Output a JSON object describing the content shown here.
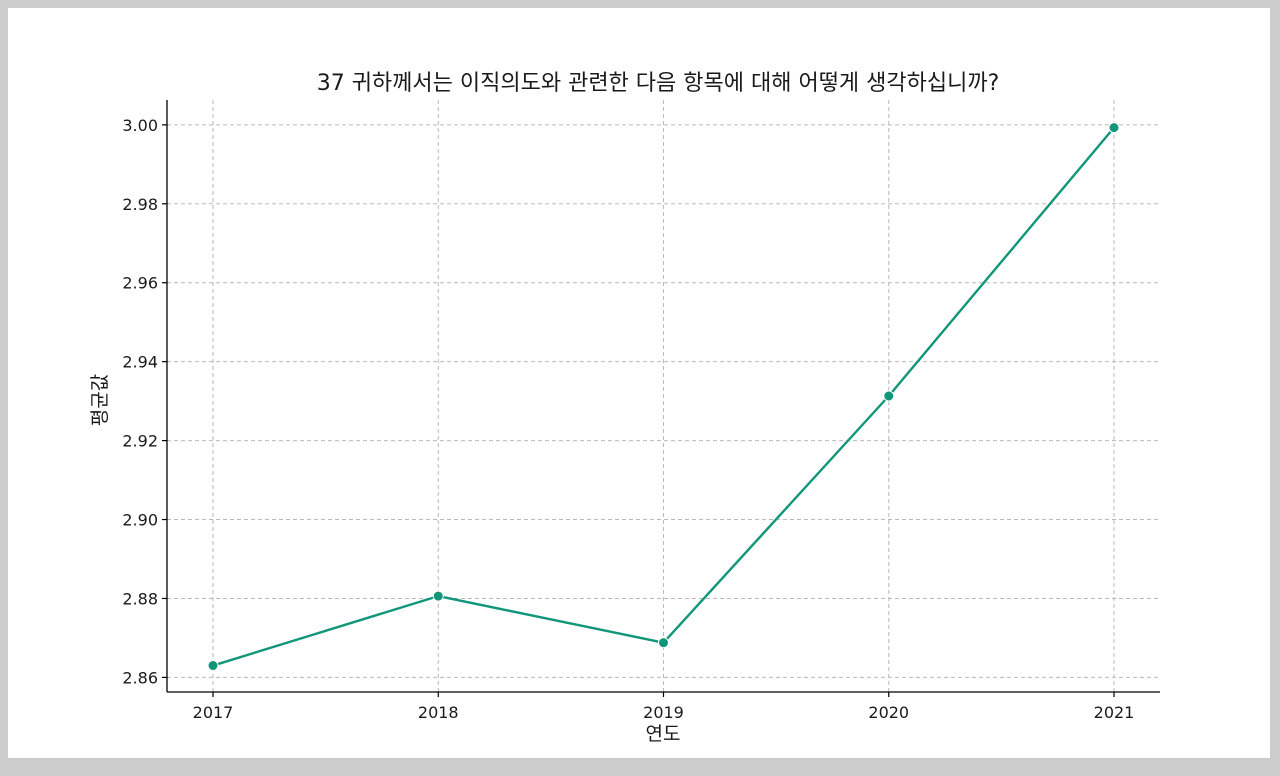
{
  "chart_data": {
    "type": "line",
    "title": "37 귀하께서는 이직의도와 관련한 다음 항목에 대해 어떻게 생각하십니까?",
    "xlabel": "연도",
    "ylabel": "평균값",
    "x": [
      "2017",
      "2018",
      "2019",
      "2020",
      "2021"
    ],
    "series": [
      {
        "values": [
          2.863,
          2.8806,
          2.8688,
          2.9313,
          2.9993
        ],
        "color": "#11967a"
      }
    ],
    "ylim": [
      2.8563,
      3.0063
    ],
    "yticks": [
      "2.86",
      "2.88",
      "2.90",
      "2.92",
      "2.94",
      "2.96",
      "2.98",
      "3.00"
    ],
    "grid": true
  }
}
